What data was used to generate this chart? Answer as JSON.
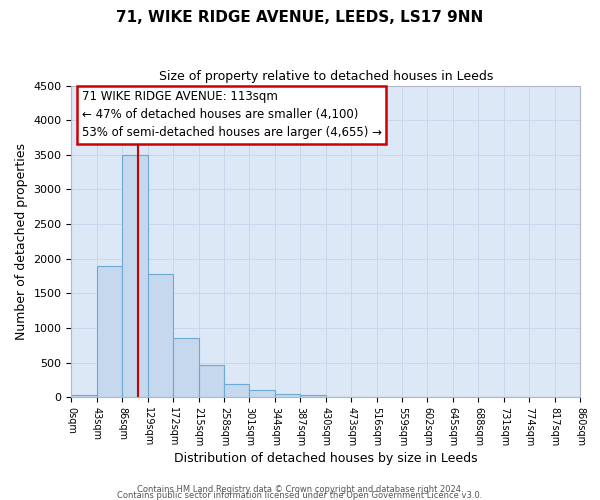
{
  "title": "71, WIKE RIDGE AVENUE, LEEDS, LS17 9NN",
  "subtitle": "Size of property relative to detached houses in Leeds",
  "xlabel": "Distribution of detached houses by size in Leeds",
  "ylabel": "Number of detached properties",
  "footer_line1": "Contains HM Land Registry data © Crown copyright and database right 2024.",
  "footer_line2": "Contains public sector information licensed under the Open Government Licence v3.0.",
  "bin_edges": [
    0,
    43,
    86,
    129,
    172,
    215,
    258,
    301,
    344,
    387,
    430,
    473,
    516,
    559,
    602,
    645,
    688,
    731,
    774,
    817,
    860
  ],
  "bin_labels": [
    "0sqm",
    "43sqm",
    "86sqm",
    "129sqm",
    "172sqm",
    "215sqm",
    "258sqm",
    "301sqm",
    "344sqm",
    "387sqm",
    "430sqm",
    "473sqm",
    "516sqm",
    "559sqm",
    "602sqm",
    "645sqm",
    "688sqm",
    "731sqm",
    "774sqm",
    "817sqm",
    "860sqm"
  ],
  "bar_heights": [
    30,
    1900,
    3500,
    1780,
    860,
    460,
    190,
    100,
    50,
    30,
    0,
    0,
    0,
    0,
    0,
    0,
    0,
    0,
    0,
    0
  ],
  "bar_color": "#c5d8ee",
  "bar_edge_color": "#6aaad4",
  "red_line_x": 113,
  "annotation_title": "71 WIKE RIDGE AVENUE: 113sqm",
  "annotation_line1": "← 47% of detached houses are smaller (4,100)",
  "annotation_line2": "53% of semi-detached houses are larger (4,655) →",
  "annotation_box_color": "#ffffff",
  "annotation_box_edge": "#cc0000",
  "ylim": [
    0,
    4500
  ],
  "yticks": [
    0,
    500,
    1000,
    1500,
    2000,
    2500,
    3000,
    3500,
    4000,
    4500
  ],
  "grid_color": "#c8d8ec",
  "background_color": "#dce8f5"
}
